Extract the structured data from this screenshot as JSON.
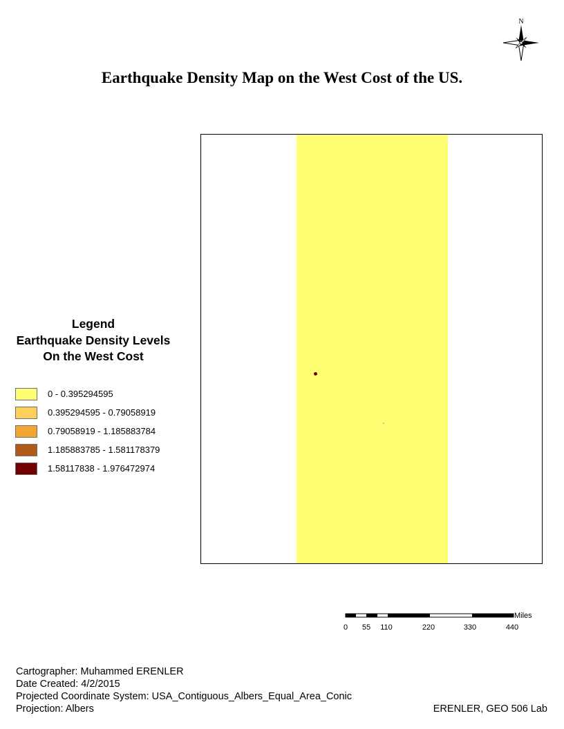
{
  "title": "Earthquake Density Map on the West Cost of the US.",
  "north_arrow": {
    "icon": "north-arrow-icon",
    "label": "N"
  },
  "map": {
    "raster_color": "#ffff73",
    "hotspots": [
      {
        "name": "hotspot-high-density",
        "color": "#730000"
      },
      {
        "name": "hotspot-low-density",
        "color": "#f5a142"
      }
    ]
  },
  "legend": {
    "title": "Legend",
    "subtitle_line1": "Earthquake Density Levels",
    "subtitle_line2": "On the West Cost",
    "items": [
      {
        "label": "0 - 0.395294595",
        "color": "#ffff73"
      },
      {
        "label": "0.395294595 - 0.79058919",
        "color": "#fcd05a"
      },
      {
        "label": "0.79058919 - 1.185883784",
        "color": "#f2a735"
      },
      {
        "label": "1.185883785 - 1.581178379",
        "color": "#b05a1a"
      },
      {
        "label": "1.58117838 - 1.976472974",
        "color": "#730000"
      }
    ]
  },
  "scale_bar": {
    "unit": "Miles",
    "ticks": [
      "0",
      "55",
      "110",
      "220",
      "330",
      "440"
    ]
  },
  "info": {
    "cartographer": "Cartographer: Muhammed ERENLER",
    "date": "Date Created: 4/2/2015",
    "coordinate_system": "Projected Coordinate System: USA_Contiguous_Albers_Equal_Area_Conic",
    "projection": "Projection: Albers"
  },
  "credit": "ERENLER, GEO 506 Lab"
}
